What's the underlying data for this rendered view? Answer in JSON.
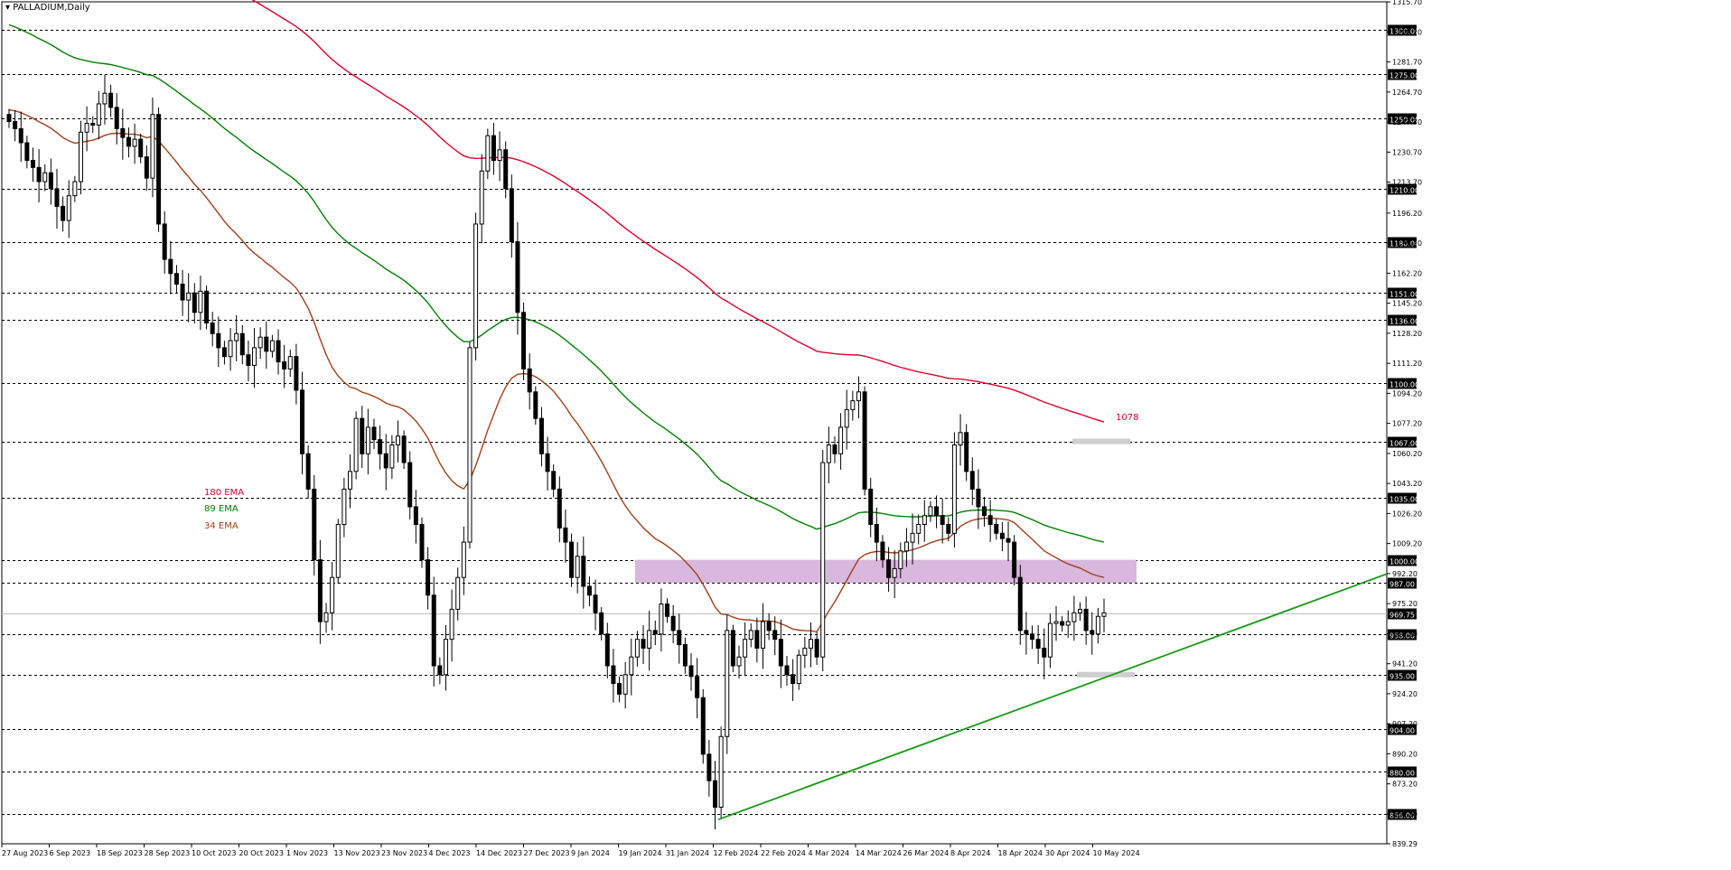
{
  "symbol": "PALLADIUM,Daily",
  "colors": {
    "background": "#ffffff",
    "candle_up": "#ffffff",
    "candle_down": "#000000",
    "ema180": "#e0002e",
    "ema89": "#008000",
    "ema34": "#a0401a",
    "trendline": "#169b16",
    "zone": "#d8b8dc",
    "level_box": "#cfcfcf"
  },
  "chart_data": {
    "type": "candlestick",
    "title": "PALLADIUM,Daily",
    "ylim": [
      839.29,
      1315.75
    ],
    "y_ticks": [
      "1315.70",
      "1298.70",
      "1281.70",
      "1264.70",
      "1247.70",
      "1230.70",
      "1213.70",
      "1196.20",
      "1179.20",
      "1162.20",
      "1145.20",
      "1128.20",
      "1111.20",
      "1094.20",
      "1077.20",
      "1060.20",
      "1043.20",
      "1026.20",
      "1009.20",
      "992.20",
      "975.20",
      "958.20",
      "941.20",
      "924.20",
      "907.20",
      "890.20",
      "873.20",
      "856.20",
      "839.29"
    ],
    "x_ticks": [
      "27 Aug 2023",
      "6 Sep 2023",
      "18 Sep 2023",
      "28 Sep 2023",
      "10 Oct 2023",
      "20 Oct 2023",
      "1 Nov 2023",
      "13 Nov 2023",
      "23 Nov 2023",
      "4 Dec 2023",
      "14 Dec 2023",
      "27 Dec 2023",
      "9 Jan 2024",
      "19 Jan 2024",
      "31 Jan 2024",
      "12 Feb 2024",
      "22 Feb 2024",
      "4 Mar 2024",
      "14 Mar 2024",
      "26 Mar 2024",
      "8 Apr 2024",
      "18 Apr 2024",
      "30 Apr 2024",
      "10 May 2024"
    ],
    "horizontal_levels": [
      "1300.00",
      "1275.00",
      "1250.00",
      "1210.00",
      "1180.00",
      "1151.00",
      "1136.00",
      "1100.00",
      "1067.00",
      "1035.00",
      "1000.00",
      "987.00",
      "958.00",
      "935.00",
      "904.00",
      "880.00",
      "856.00"
    ],
    "current_price": "969.75",
    "closes": [
      1248,
      1244,
      1236,
      1226,
      1222,
      1214,
      1219,
      1210,
      1200,
      1192,
      1206,
      1214,
      1242,
      1247,
      1246,
      1258,
      1264,
      1256,
      1244,
      1239,
      1234,
      1238,
      1228,
      1216,
      1252,
      1190,
      1170,
      1162,
      1156,
      1147,
      1151,
      1140,
      1152,
      1134,
      1128,
      1120,
      1115,
      1124,
      1128,
      1116,
      1110,
      1120,
      1126,
      1118,
      1124,
      1112,
      1108,
      1115,
      1096,
      1060,
      1040,
      1000,
      965,
      970,
      990,
      1020,
      1040,
      1050,
      1080,
      1060,
      1075,
      1068,
      1060,
      1052,
      1065,
      1070,
      1055,
      1030,
      1020,
      1000,
      980,
      940,
      935,
      955,
      972,
      990,
      1010,
      1120,
      1190,
      1220,
      1240,
      1226,
      1232,
      1210,
      1180,
      1140,
      1108,
      1095,
      1080,
      1060,
      1050,
      1040,
      1018,
      1010,
      990,
      1002,
      985,
      980,
      970,
      958,
      940,
      930,
      924,
      935,
      945,
      955,
      950,
      960,
      958,
      975,
      968,
      960,
      952,
      940,
      934,
      922,
      890,
      875,
      860,
      900,
      960,
      940,
      945,
      955,
      960,
      950,
      965,
      960,
      955,
      940,
      935,
      930,
      946,
      950,
      955,
      945,
      1055,
      1065,
      1060,
      1075,
      1085,
      1090,
      1095,
      1040,
      1020,
      1010,
      1000,
      990,
      995,
      1005,
      1010,
      1015,
      1020,
      1025,
      1030,
      1025,
      1020,
      1015,
      1065,
      1072,
      1050,
      1040,
      1030,
      1025,
      1020,
      1015,
      1012,
      1010,
      990,
      960,
      958,
      955,
      950,
      945,
      964,
      965,
      963,
      965,
      970,
      972,
      960,
      958,
      968,
      970
    ],
    "series": [
      {
        "name": "180 EMA",
        "start": 1388,
        "end": 1078,
        "label": "1078"
      },
      {
        "name": "89 EMA",
        "start": 1304,
        "end": 1010
      },
      {
        "name": "34 EMA",
        "start": 1255,
        "end": 990
      }
    ],
    "zone": {
      "from": 987,
      "to": 1000
    },
    "trendline": {
      "from_date": "12 Feb 2024",
      "from_price": 853,
      "to_price": 992
    }
  }
}
